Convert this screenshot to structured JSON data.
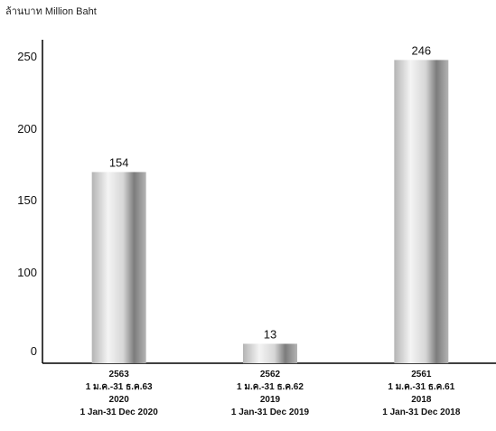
{
  "chart_data": {
    "type": "bar",
    "unit_label": "ล้านบาท Million Baht",
    "categories": [
      [
        "2563",
        "1 ม.ค.-31 ธ.ค.63",
        "2020",
        "1 Jan-31 Dec 2020"
      ],
      [
        "2562",
        "1 ม.ค.-31 ธ.ค.62",
        "2019",
        "1 Jan-31 Dec 2019"
      ],
      [
        "2561",
        "1 ม.ค.-31 ธ.ค.61",
        "2018",
        "1 Jan-31 Dec 2018"
      ]
    ],
    "values": [
      154,
      13,
      246
    ],
    "yticks": [
      "0",
      "100",
      "150",
      "200",
      "250"
    ],
    "ylim": [
      0,
      265
    ],
    "grid": false,
    "bar_colors": {
      "edge": "#b4b4b4",
      "highlight": "#f4f4f4",
      "shadow": "#7c7c7c"
    }
  }
}
